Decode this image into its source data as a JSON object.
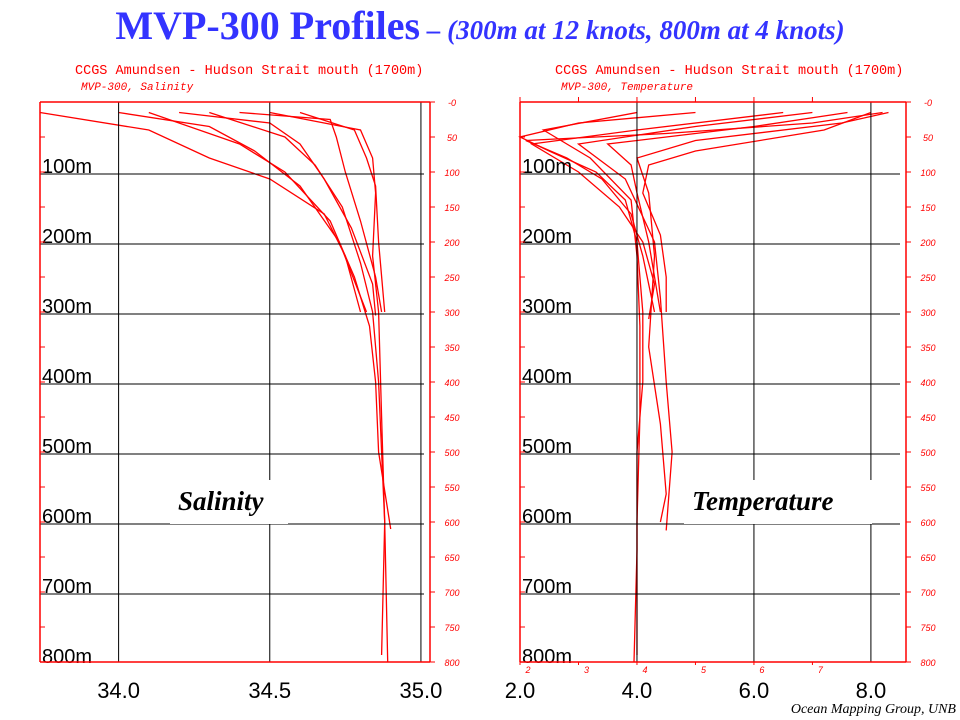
{
  "title": {
    "main": "MVP-300 Profiles",
    "sub": " – (300m at 12 knots, 800m at 4 knots)"
  },
  "credit": "Ocean Mapping Group, UNB",
  "colors": {
    "title": "#3333ff",
    "profiles": "#ff0000",
    "axes": "#ff0000",
    "grid": "#000000"
  },
  "chart_data": [
    {
      "type": "line",
      "header": "CCGS Amundsen - Hudson Strait mouth (1700m)",
      "subheader": "MVP-300, Salinity",
      "label": "Salinity",
      "xlim": [
        33.74,
        35.03
      ],
      "ylim": [
        0,
        800
      ],
      "y_inverted": true,
      "grid": true,
      "x_ticks": [
        "34.0",
        "34.5",
        "35.0"
      ],
      "x_tick_values": [
        34.0,
        34.5,
        35.0
      ],
      "depth_labels": [
        "100m",
        "200m",
        "300m",
        "400m",
        "500m",
        "600m",
        "700m",
        "800m"
      ],
      "depth_ticks": [
        "-0",
        "50",
        "100",
        "150",
        "200",
        "250",
        "300",
        "350",
        "400",
        "450",
        "500",
        "550",
        "600",
        "650",
        "700",
        "750",
        "800"
      ],
      "profiles": [
        [
          [
            15,
            33.74
          ],
          [
            40,
            34.1
          ],
          [
            80,
            34.3
          ],
          [
            110,
            34.5
          ],
          [
            160,
            34.68
          ],
          [
            220,
            34.75
          ],
          [
            300,
            34.8
          ]
        ],
        [
          [
            15,
            34.0
          ],
          [
            35,
            34.3
          ],
          [
            70,
            34.45
          ],
          [
            120,
            34.6
          ],
          [
            200,
            34.73
          ],
          [
            300,
            34.82
          ]
        ],
        [
          [
            15,
            34.2
          ],
          [
            30,
            34.5
          ],
          [
            60,
            34.6
          ],
          [
            110,
            34.68
          ],
          [
            180,
            34.77
          ],
          [
            260,
            34.84
          ],
          [
            305,
            34.85
          ]
        ],
        [
          [
            15,
            34.4
          ],
          [
            25,
            34.7
          ],
          [
            50,
            34.72
          ],
          [
            100,
            34.75
          ],
          [
            170,
            34.8
          ],
          [
            250,
            34.85
          ],
          [
            300,
            34.87
          ]
        ],
        [
          [
            15,
            34.6
          ],
          [
            40,
            34.78
          ],
          [
            80,
            34.82
          ],
          [
            120,
            34.85
          ],
          [
            200,
            34.86
          ],
          [
            300,
            34.88
          ]
        ],
        [
          [
            15,
            34.3
          ],
          [
            50,
            34.55
          ],
          [
            90,
            34.65
          ],
          [
            150,
            34.74
          ],
          [
            230,
            34.8
          ],
          [
            300,
            34.84
          ],
          [
            400,
            34.86
          ],
          [
            500,
            34.87
          ],
          [
            600,
            34.88
          ],
          [
            790,
            34.87
          ]
        ],
        [
          [
            15,
            34.1
          ],
          [
            60,
            34.4
          ],
          [
            100,
            34.55
          ],
          [
            170,
            34.7
          ],
          [
            250,
            34.78
          ],
          [
            320,
            34.83
          ],
          [
            400,
            34.85
          ],
          [
            500,
            34.86
          ],
          [
            610,
            34.9
          ]
        ],
        [
          [
            15,
            34.5
          ],
          [
            40,
            34.8
          ],
          [
            80,
            34.84
          ],
          [
            130,
            34.85
          ],
          [
            220,
            34.84
          ],
          [
            300,
            34.86
          ],
          [
            450,
            34.87
          ],
          [
            600,
            34.88
          ],
          [
            800,
            34.89
          ]
        ]
      ]
    },
    {
      "type": "line",
      "header": "CCGS Amundsen - Hudson Strait mouth (1700m)",
      "subheader": "MVP-300, Temperature",
      "label": "Temperature",
      "xlim": [
        2.0,
        8.6
      ],
      "ylim": [
        0,
        800
      ],
      "y_inverted": true,
      "grid": true,
      "x_ticks": [
        "2.0",
        "4.0",
        "6.0",
        "8.0"
      ],
      "x_tick_values": [
        2.0,
        4.0,
        6.0,
        8.0
      ],
      "x_minor_ticks": [
        "2",
        "3",
        "4",
        "5",
        "6",
        "7"
      ],
      "depth_labels": [
        "100m",
        "200m",
        "300m",
        "400m",
        "500m",
        "600m",
        "700m",
        "800m"
      ],
      "depth_ticks": [
        "-0",
        "50",
        "100",
        "150",
        "200",
        "250",
        "300",
        "350",
        "400",
        "450",
        "500",
        "550",
        "600",
        "650",
        "700",
        "750",
        "800"
      ],
      "profiles": [
        [
          [
            15,
            8.2
          ],
          [
            30,
            7.0
          ],
          [
            45,
            4.5
          ],
          [
            55,
            2.1
          ],
          [
            80,
            2.8
          ],
          [
            110,
            3.4
          ],
          [
            160,
            3.9
          ],
          [
            220,
            4.1
          ],
          [
            300,
            4.3
          ]
        ],
        [
          [
            15,
            7.6
          ],
          [
            35,
            6.0
          ],
          [
            60,
            3.5
          ],
          [
            90,
            3.9
          ],
          [
            130,
            4.0
          ],
          [
            200,
            4.2
          ],
          [
            300,
            4.4
          ]
        ],
        [
          [
            15,
            6.5
          ],
          [
            40,
            4.0
          ],
          [
            60,
            2.2
          ],
          [
            100,
            3.0
          ],
          [
            150,
            3.7
          ],
          [
            200,
            4.1
          ],
          [
            260,
            4.3
          ],
          [
            310,
            4.2
          ]
        ],
        [
          [
            15,
            8.0
          ],
          [
            40,
            7.2
          ],
          [
            70,
            5.0
          ],
          [
            90,
            4.2
          ],
          [
            130,
            4.1
          ],
          [
            190,
            4.4
          ],
          [
            250,
            4.5
          ],
          [
            300,
            4.5
          ]
        ],
        [
          [
            15,
            5.0
          ],
          [
            30,
            3.0
          ],
          [
            50,
            2.0
          ],
          [
            70,
            2.5
          ],
          [
            100,
            3.3
          ],
          [
            140,
            3.8
          ],
          [
            200,
            4.0
          ],
          [
            300,
            4.1
          ],
          [
            400,
            4.1
          ],
          [
            500,
            4.0
          ],
          [
            640,
            4.0
          ],
          [
            800,
            3.95
          ]
        ],
        [
          [
            15,
            7.0
          ],
          [
            35,
            5.0
          ],
          [
            60,
            3.0
          ],
          [
            110,
            3.8
          ],
          [
            200,
            4.3
          ],
          [
            280,
            4.4
          ],
          [
            400,
            4.5
          ],
          [
            500,
            4.6
          ],
          [
            612,
            4.5
          ]
        ],
        [
          [
            15,
            8.3
          ],
          [
            30,
            7.5
          ],
          [
            55,
            5.0
          ],
          [
            80,
            4.0
          ],
          [
            130,
            4.2
          ],
          [
            220,
            4.3
          ],
          [
            350,
            4.2
          ],
          [
            460,
            4.4
          ],
          [
            560,
            4.5
          ],
          [
            600,
            4.4
          ]
        ],
        [
          [
            15,
            4.0
          ],
          [
            40,
            2.4
          ],
          [
            80,
            3.2
          ],
          [
            140,
            3.9
          ],
          [
            220,
            4.0
          ],
          [
            320,
            4.05
          ],
          [
            450,
            4.05
          ],
          [
            600,
            4.0
          ],
          [
            790,
            4.0
          ]
        ]
      ]
    }
  ]
}
